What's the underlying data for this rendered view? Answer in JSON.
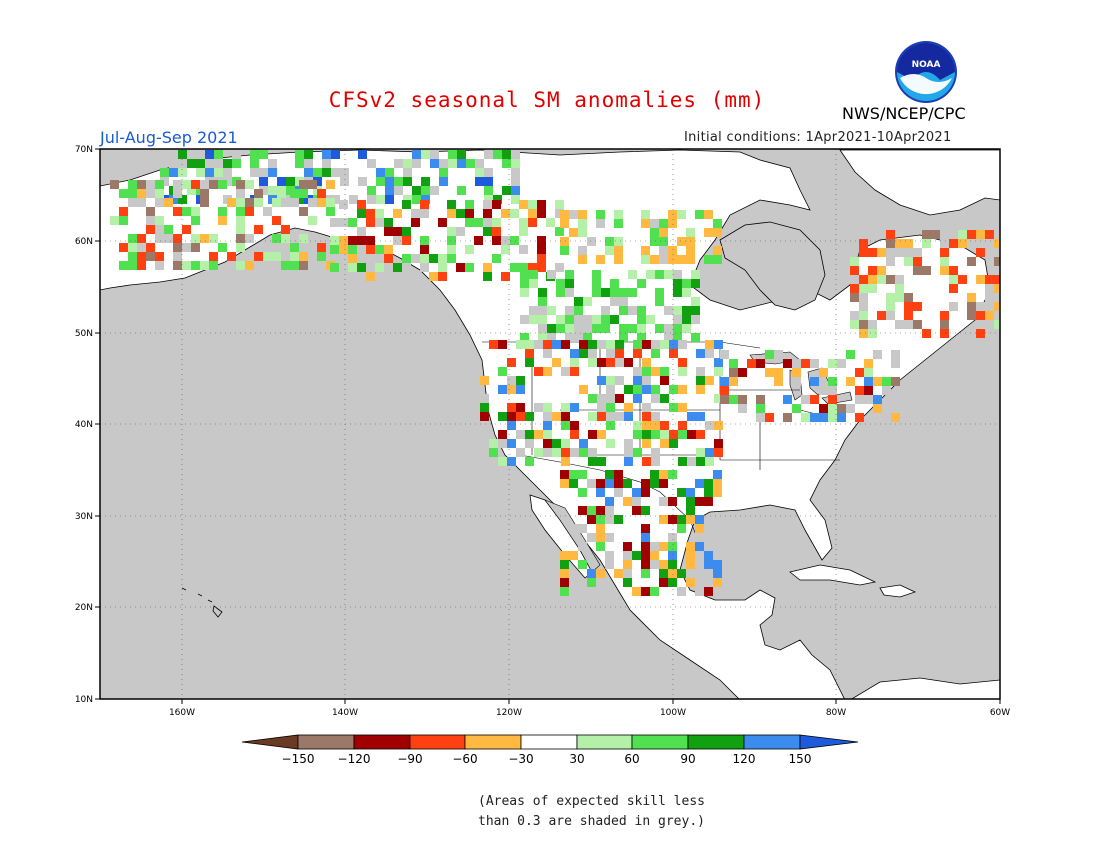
{
  "title": "CFSv2 seasonal SM anomalies (mm)",
  "season": "Jul-Aug-Sep 2021",
  "agency": "NWS/NCEP/CPC",
  "initial_conditions": "Initial conditions: 1Apr2021-10Apr2021",
  "logo_text": "NOAA",
  "note_line1": "(Areas of expected skill less",
  "note_line2": "than 0.3 are shaded in grey.)",
  "map": {
    "lon_range": [
      -170,
      -60
    ],
    "lat_range": [
      10,
      70
    ],
    "lon_ticks": [
      "160W",
      "140W",
      "120W",
      "100W",
      "80W",
      "60W"
    ],
    "lat_ticks": [
      "10N",
      "20N",
      "30N",
      "40N",
      "50N",
      "60N",
      "70N"
    ],
    "ocean_color": "#c8c8c8",
    "land_color": "#ffffff"
  },
  "colorbar": {
    "labels": [
      "−150",
      "−120",
      "−90",
      "−60",
      "−30",
      "30",
      "60",
      "90",
      "120",
      "150"
    ],
    "colors": [
      "#6b3a22",
      "#9c7868",
      "#a00000",
      "#ff4010",
      "#ffb840",
      "#ffffff",
      "#b4f0a8",
      "#50e050",
      "#10a010",
      "#3c8cf0",
      "#1e5adc"
    ]
  }
}
